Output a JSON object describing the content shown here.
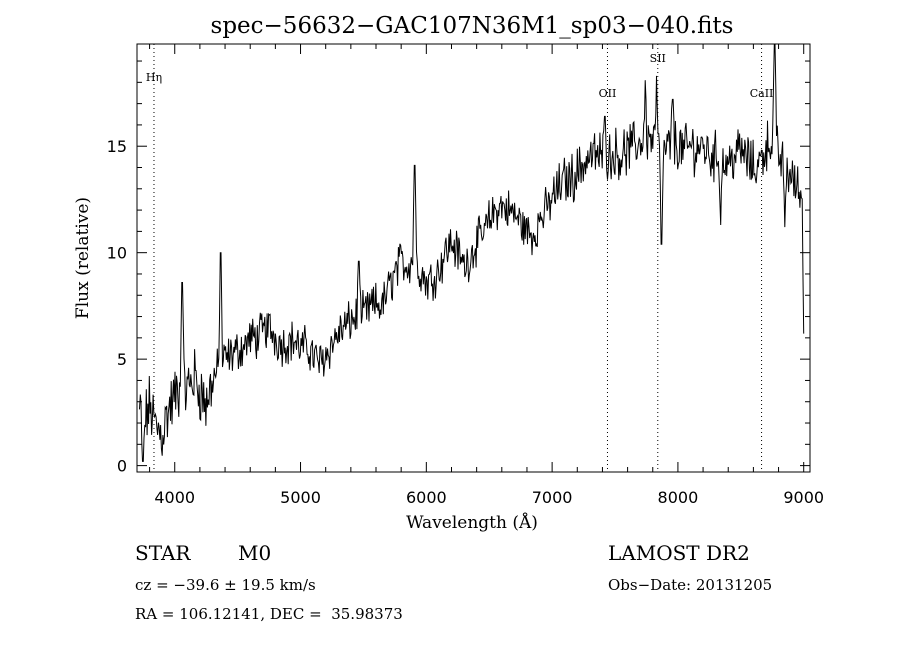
{
  "chart_data": {
    "type": "line",
    "title": "spec−56632−GAC107N36M1_sp03−040.fits",
    "xlabel": "Wavelength (Å)",
    "ylabel": "Flux (relative)",
    "xlim": [
      3700,
      9050
    ],
    "ylim": [
      -0.3,
      19.8
    ],
    "x_ticks": [
      4000,
      5000,
      6000,
      7000,
      8000,
      9000
    ],
    "x_tick_labels": [
      "4000",
      "5000",
      "6000",
      "7000",
      "8000",
      "9000"
    ],
    "y_ticks": [
      0,
      5,
      10,
      15
    ],
    "y_tick_labels": [
      "0",
      "5",
      "10",
      "15"
    ],
    "grid": false,
    "lines_marked": [
      {
        "label": "Hη",
        "wavelength": 3835
      },
      {
        "label": "OII",
        "wavelength": 7440
      },
      {
        "label": "SII",
        "wavelength": 7840
      },
      {
        "label": "CaII",
        "wavelength": 8665
      }
    ],
    "series": [
      {
        "x": [
          3720,
          3760,
          3800,
          3850,
          3900,
          3950,
          4000,
          4050,
          4100,
          4150,
          4200,
          4250,
          4300,
          4350,
          4400,
          4450,
          4500,
          4550,
          4600,
          4650,
          4700,
          4750,
          4800,
          4850,
          4900,
          4950,
          5000,
          5050,
          5100,
          5150,
          5200,
          5250,
          5300,
          5350,
          5400,
          5450,
          5500,
          5550,
          5600,
          5650,
          5700,
          5750,
          5800,
          5850,
          5900,
          5950,
          6000,
          6050,
          6100,
          6150,
          6200,
          6250,
          6300,
          6350,
          6400,
          6450,
          6500,
          6550,
          6600,
          6650,
          6700,
          6750,
          6800,
          6850,
          6900,
          6950,
          7000,
          7050,
          7100,
          7150,
          7200,
          7250,
          7300,
          7350,
          7400,
          7450,
          7500,
          7550,
          7600,
          7650,
          7700,
          7750,
          7800,
          7850,
          7900,
          7950,
          8000,
          8050,
          8100,
          8150,
          8200,
          8250,
          8300,
          8350,
          8400,
          8450,
          8500,
          8550,
          8600,
          8650,
          8700,
          8750,
          8800,
          8850,
          8900,
          8950,
          9000
        ],
        "y": [
          2.5,
          2.0,
          2.8,
          1.8,
          1.5,
          2.6,
          3.2,
          3.8,
          3.6,
          4.2,
          3.6,
          2.8,
          4.0,
          4.6,
          5.0,
          5.2,
          5.4,
          5.6,
          6.0,
          6.0,
          6.3,
          6.5,
          6.0,
          5.7,
          5.8,
          5.9,
          5.5,
          5.6,
          5.2,
          4.8,
          5.2,
          5.7,
          6.2,
          6.5,
          6.8,
          7.0,
          7.1,
          7.4,
          7.6,
          7.5,
          8.3,
          9.0,
          9.6,
          9.4,
          9.8,
          9.2,
          8.6,
          8.8,
          9.2,
          10.0,
          10.5,
          10.0,
          9.4,
          9.8,
          10.5,
          10.8,
          11.5,
          12.0,
          12.2,
          12.0,
          11.8,
          11.4,
          11.0,
          10.8,
          11.5,
          12.0,
          12.5,
          13.0,
          13.4,
          13.5,
          13.8,
          14.2,
          14.5,
          14.6,
          14.5,
          14.5,
          14.7,
          14.6,
          14.8,
          15.0,
          15.2,
          15.5,
          15.3,
          15.0,
          14.6,
          15.3,
          15.0,
          14.8,
          15.0,
          14.9,
          15.0,
          14.6,
          14.5,
          14.3,
          14.2,
          14.6,
          14.8,
          14.4,
          14.0,
          14.2,
          15.0,
          15.4,
          14.6,
          14.0,
          13.6,
          13.0,
          12.5
        ],
        "peaks": [
          {
            "x": 4060,
            "y": 8.6
          },
          {
            "x": 4365,
            "y": 10.0
          },
          {
            "x": 5465,
            "y": 9.6
          },
          {
            "x": 5905,
            "y": 14.1
          },
          {
            "x": 7420,
            "y": 16.4
          },
          {
            "x": 7740,
            "y": 18.1
          },
          {
            "x": 7830,
            "y": 18.3
          },
          {
            "x": 7960,
            "y": 17.2
          },
          {
            "x": 8770,
            "y": 19.8
          }
        ],
        "dips": [
          {
            "x": 3745,
            "y": 0.2
          },
          {
            "x": 7870,
            "y": 10.4
          },
          {
            "x": 8340,
            "y": 11.3
          },
          {
            "x": 8850,
            "y": 11.2
          },
          {
            "x": 9000,
            "y": 6.2
          }
        ]
      }
    ]
  },
  "info": {
    "object_class": "STAR",
    "subclass": "M0",
    "survey": "LAMOST DR2",
    "cz": "cz = −39.6 ± 19.5 km/s",
    "obs_date": "Obs−Date: 20131205",
    "coords": "RA = 106.12141, DEC =  35.98373"
  }
}
